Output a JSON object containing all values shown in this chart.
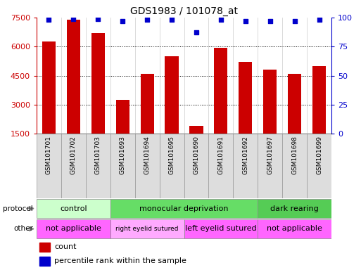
{
  "title": "GDS1983 / 101078_at",
  "samples": [
    "GSM101701",
    "GSM101702",
    "GSM101703",
    "GSM101693",
    "GSM101694",
    "GSM101695",
    "GSM101690",
    "GSM101691",
    "GSM101692",
    "GSM101697",
    "GSM101698",
    "GSM101699"
  ],
  "counts": [
    6250,
    7400,
    6700,
    3250,
    4600,
    5500,
    1900,
    5950,
    5200,
    4800,
    4600,
    5000
  ],
  "percentile_ranks": [
    98,
    99,
    99,
    97,
    98,
    98,
    87,
    98,
    97,
    97,
    97,
    98
  ],
  "ylim_left": [
    1500,
    7500
  ],
  "ylim_right": [
    0,
    100
  ],
  "yticks_left": [
    1500,
    3000,
    4500,
    6000,
    7500
  ],
  "yticks_right": [
    0,
    25,
    50,
    75,
    100
  ],
  "bar_color": "#CC0000",
  "dot_color": "#0000CC",
  "left_axis_color": "#CC0000",
  "right_axis_color": "#0000CC",
  "protocol_groups": [
    {
      "label": "control",
      "start": 0,
      "end": 3,
      "color": "#CCFFCC"
    },
    {
      "label": "monocular deprivation",
      "start": 3,
      "end": 9,
      "color": "#66DD66"
    },
    {
      "label": "dark rearing",
      "start": 9,
      "end": 12,
      "color": "#55CC55"
    }
  ],
  "other_groups": [
    {
      "label": "not applicable",
      "start": 0,
      "end": 3,
      "color": "#FF66FF"
    },
    {
      "label": "right eyelid sutured",
      "start": 3,
      "end": 6,
      "color": "#FFAAFF"
    },
    {
      "label": "left eyelid sutured",
      "start": 6,
      "end": 9,
      "color": "#FF66FF"
    },
    {
      "label": "not applicable",
      "start": 9,
      "end": 12,
      "color": "#FF66FF"
    }
  ],
  "legend_items": [
    {
      "label": "count",
      "color": "#CC0000"
    },
    {
      "label": "percentile rank within the sample",
      "color": "#0000CC"
    }
  ]
}
